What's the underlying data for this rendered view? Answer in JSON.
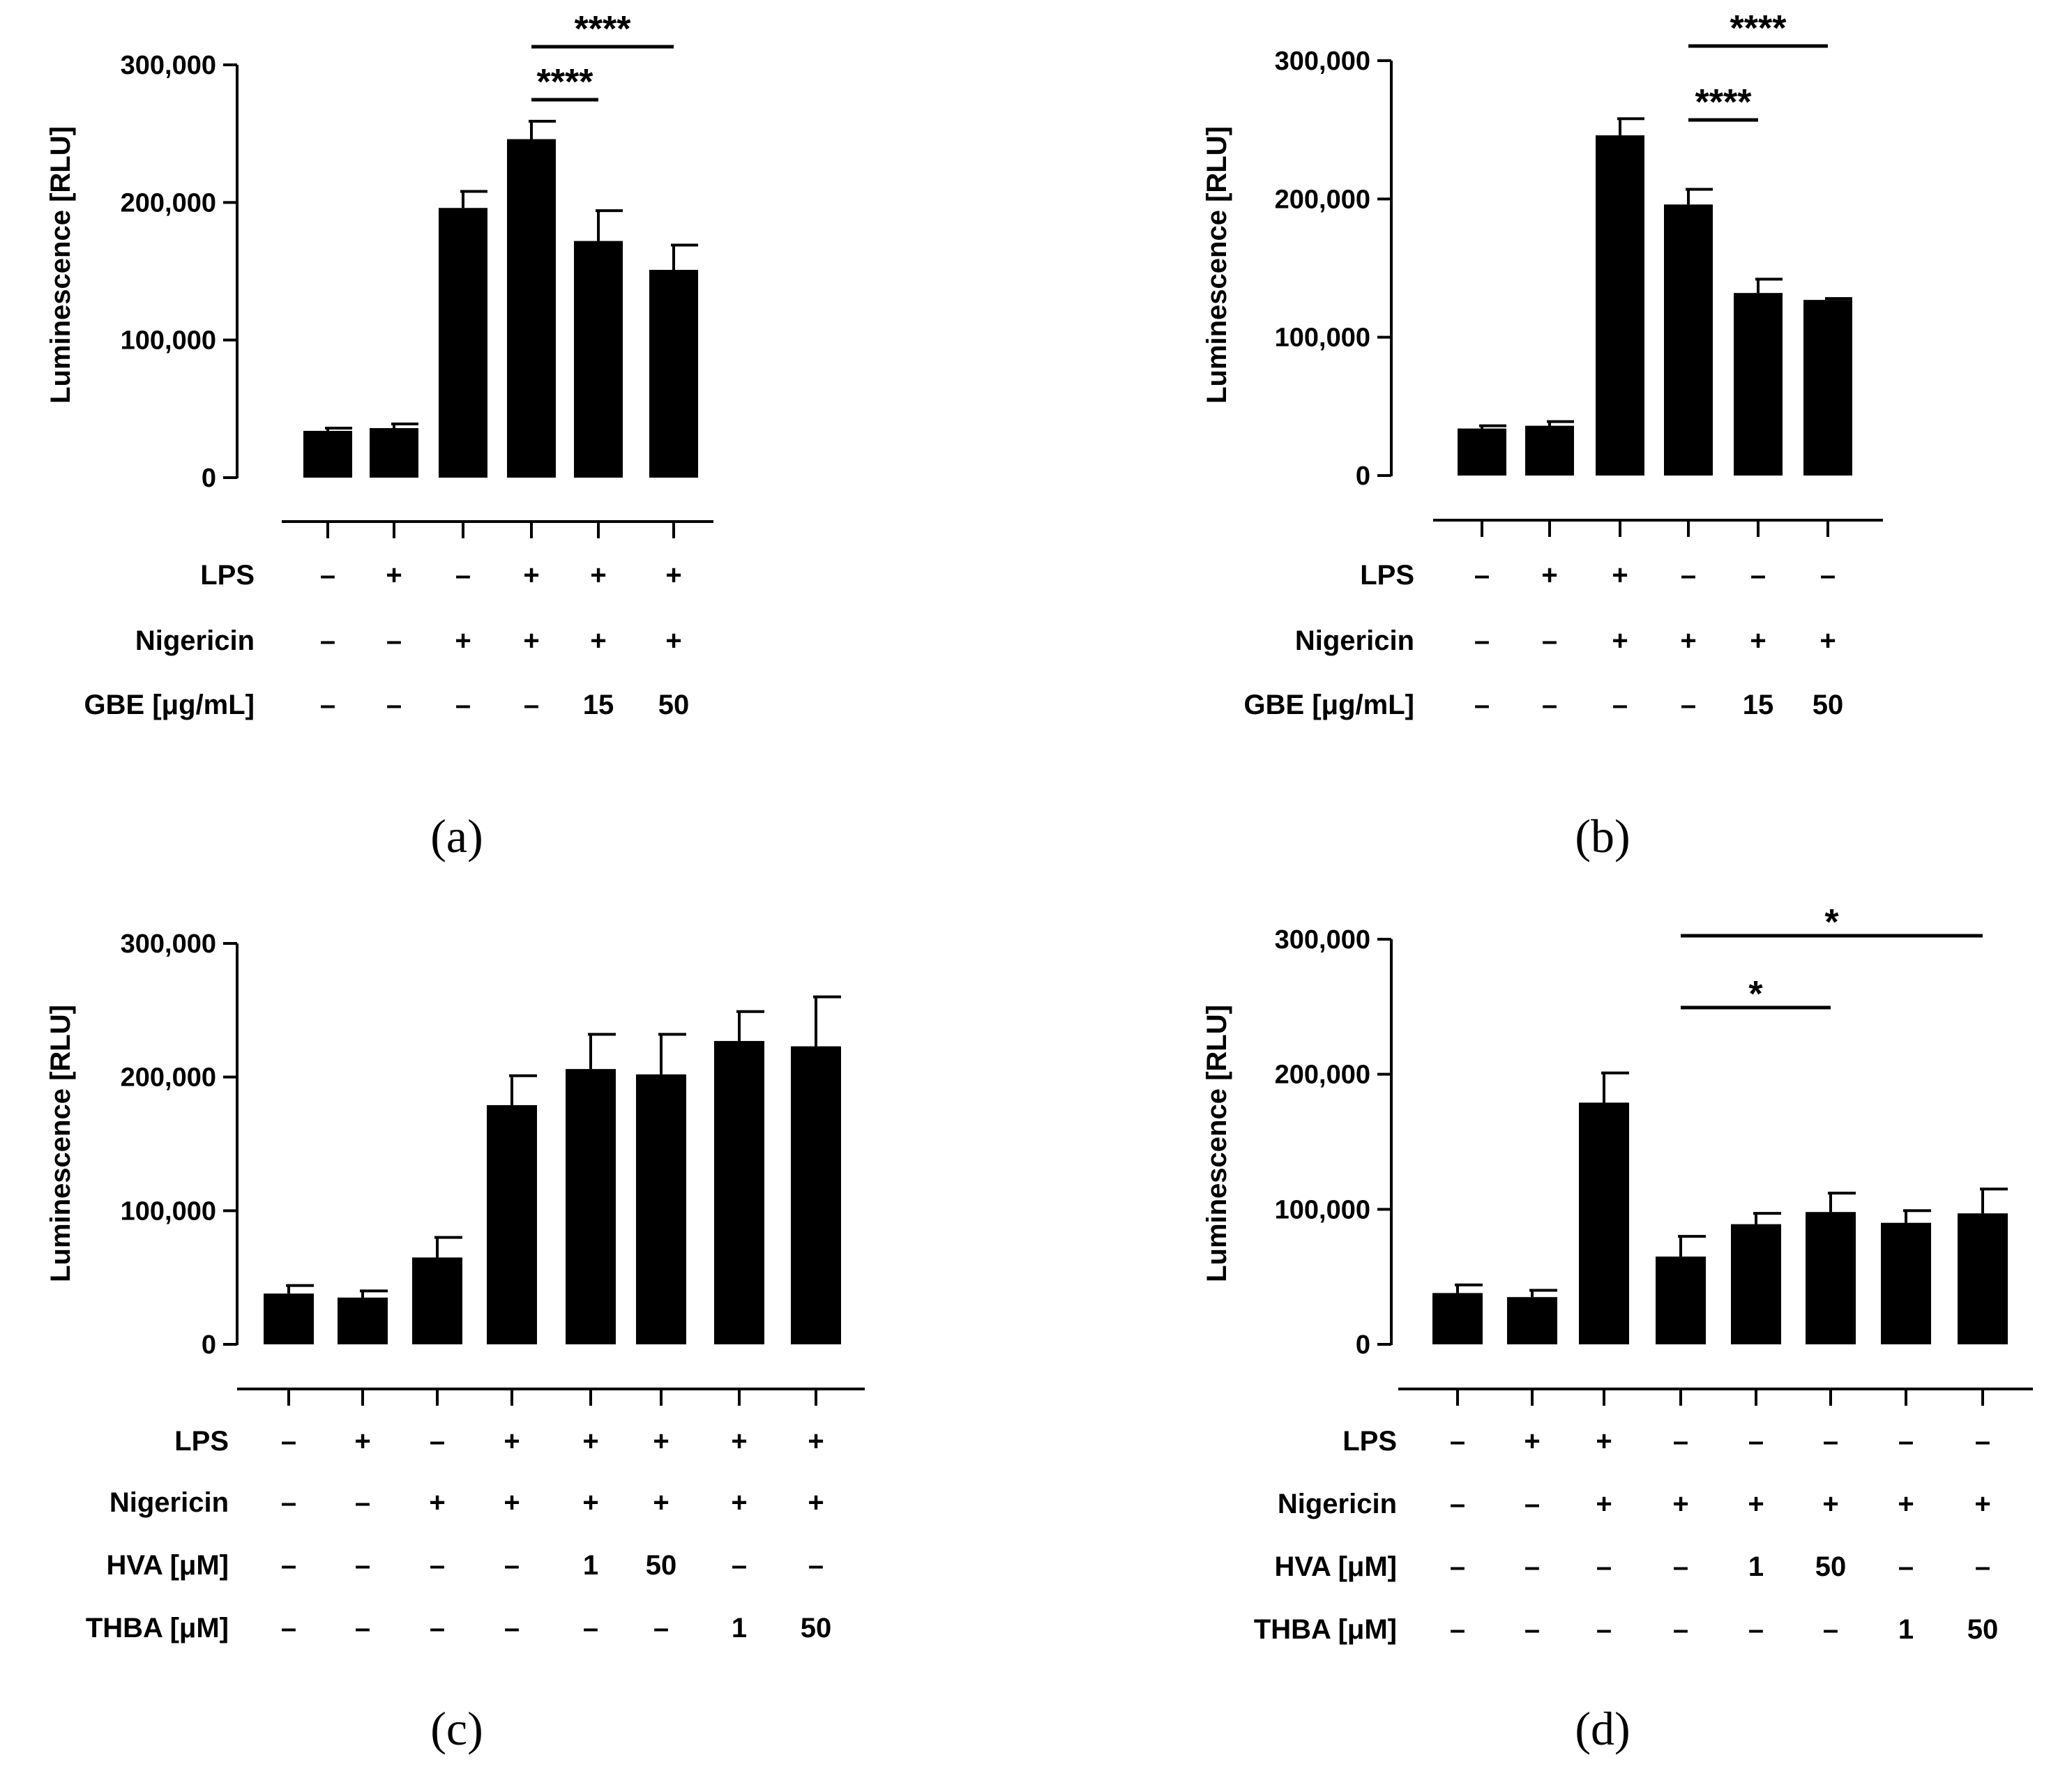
{
  "chart_data": [
    {
      "type": "bar",
      "panel": "(a)",
      "ylabel": "Luminescence [RLU]",
      "ylim": [
        0,
        300000
      ],
      "yticks": [
        0,
        100000,
        200000,
        300000
      ],
      "ytick_labels": [
        "0",
        "100,000",
        "200,000",
        "300,000"
      ],
      "values": [
        34000,
        36000,
        196000,
        246000,
        172000,
        151000
      ],
      "errors": [
        2000,
        3000,
        12000,
        13000,
        22000,
        18000
      ],
      "conditions": [
        {
          "name": "LPS",
          "values": [
            "–",
            "+",
            "–",
            "+",
            "+",
            "+"
          ]
        },
        {
          "name": "Nigericin",
          "values": [
            "–",
            "–",
            "+",
            "+",
            "+",
            "+"
          ]
        },
        {
          "name": "GBE [μg/mL]",
          "values": [
            "–",
            "–",
            "–",
            "–",
            "15",
            "50"
          ]
        }
      ],
      "significance": [
        {
          "from": 3,
          "to": 4,
          "label": "****"
        },
        {
          "from": 3,
          "to": 5,
          "label": "****"
        }
      ]
    },
    {
      "type": "bar",
      "panel": "(b)",
      "ylabel": "Luminescence [RLU]",
      "ylim": [
        0,
        300000
      ],
      "yticks": [
        0,
        100000,
        200000,
        300000
      ],
      "ytick_labels": [
        "0",
        "100,000",
        "200,000",
        "300,000"
      ],
      "values": [
        34000,
        36000,
        246000,
        196000,
        132000,
        127000
      ],
      "errors": [
        2000,
        3000,
        12000,
        11000,
        10000,
        1000
      ],
      "conditions": [
        {
          "name": "LPS",
          "values": [
            "–",
            "+",
            "+",
            "–",
            "–",
            "–"
          ]
        },
        {
          "name": "Nigericin",
          "values": [
            "–",
            "–",
            "+",
            "+",
            "+",
            "+"
          ]
        },
        {
          "name": "GBE [μg/mL]",
          "values": [
            "–",
            "–",
            "–",
            "–",
            "15",
            "50"
          ]
        }
      ],
      "significance": [
        {
          "from": 3,
          "to": 4,
          "label": "****"
        },
        {
          "from": 3,
          "to": 5,
          "label": "****"
        }
      ]
    },
    {
      "type": "bar",
      "panel": "(c)",
      "ylabel": "Luminescence [RLU]",
      "ylim": [
        0,
        300000
      ],
      "yticks": [
        0,
        100000,
        200000,
        300000
      ],
      "ytick_labels": [
        "0",
        "100,000",
        "200,000",
        "300,000"
      ],
      "values": [
        38000,
        35000,
        65000,
        179000,
        206000,
        202000,
        227000,
        223000
      ],
      "errors": [
        6000,
        5000,
        15000,
        22000,
        26000,
        30000,
        22000,
        37000
      ],
      "conditions": [
        {
          "name": "LPS",
          "values": [
            "–",
            "+",
            "–",
            "+",
            "+",
            "+",
            "+",
            "+"
          ]
        },
        {
          "name": "Nigericin",
          "values": [
            "–",
            "–",
            "+",
            "+",
            "+",
            "+",
            "+",
            "+"
          ]
        },
        {
          "name": "HVA [μM]",
          "values": [
            "–",
            "–",
            "–",
            "–",
            "1",
            "50",
            "–",
            "–"
          ]
        },
        {
          "name": "THBA [μM]",
          "values": [
            "–",
            "–",
            "–",
            "–",
            "–",
            "–",
            "1",
            "50"
          ]
        }
      ],
      "significance": []
    },
    {
      "type": "bar",
      "panel": "(d)",
      "ylabel": "Luminescence [RLU]",
      "ylim": [
        0,
        300000
      ],
      "yticks": [
        0,
        100000,
        200000,
        300000
      ],
      "ytick_labels": [
        "0",
        "100,000",
        "200,000",
        "300,000"
      ],
      "values": [
        38000,
        35000,
        179000,
        65000,
        89000,
        98000,
        90000,
        97000
      ],
      "errors": [
        6000,
        5000,
        22000,
        15000,
        8000,
        14000,
        9000,
        18000
      ],
      "conditions": [
        {
          "name": "LPS",
          "values": [
            "–",
            "+",
            "+",
            "–",
            "–",
            "–",
            "–",
            "–"
          ]
        },
        {
          "name": "Nigericin",
          "values": [
            "–",
            "–",
            "+",
            "+",
            "+",
            "+",
            "+",
            "+"
          ]
        },
        {
          "name": "HVA [μM]",
          "values": [
            "–",
            "–",
            "–",
            "–",
            "1",
            "50",
            "–",
            "–"
          ]
        },
        {
          "name": "THBA [μM]",
          "values": [
            "–",
            "–",
            "–",
            "–",
            "–",
            "–",
            "1",
            "50"
          ]
        }
      ],
      "significance": [
        {
          "from": 3,
          "to": 5,
          "label": "*"
        },
        {
          "from": 3,
          "to": 7,
          "label": "*"
        }
      ]
    }
  ]
}
